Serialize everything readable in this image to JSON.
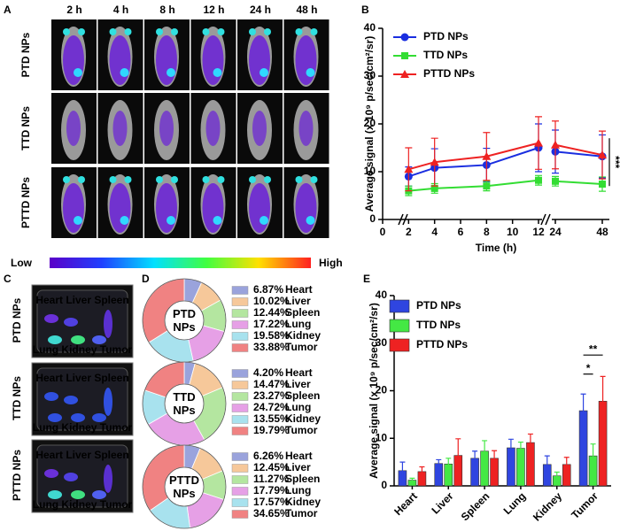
{
  "figure": {
    "panel_labels": [
      "A",
      "B",
      "C",
      "D",
      "E"
    ]
  },
  "imaging": {
    "time_points": [
      "2 h",
      "4 h",
      "8 h",
      "12 h",
      "24 h",
      "48 h"
    ],
    "groups": [
      "PTD NPs",
      "TTD NPs",
      "PTTD NPs"
    ],
    "scale_low": "Low",
    "scale_high": "High",
    "organ_groups": [
      "PTD NPs",
      "TTD NPs",
      "PTTD NPs"
    ],
    "organ_row_top": "Heart Liver Spleen",
    "organ_row_bottom": "Lung Kidney Tumor"
  },
  "chart_data": [
    {
      "type": "line",
      "x_label": "Time (h)",
      "y_label": "Average signal (x 10⁹ p/sec/cm²/sr)",
      "x": [
        2,
        4,
        8,
        12,
        24,
        48
      ],
      "xlim": [
        0,
        48
      ],
      "axis_break": [
        12,
        24
      ],
      "xticks": [
        0,
        2,
        4,
        6,
        8,
        10,
        12,
        24,
        48
      ],
      "ylim": [
        0,
        40
      ],
      "yticks": [
        0,
        10,
        20,
        30,
        40
      ],
      "annotation": "***",
      "series": [
        {
          "name": "PTD NPs",
          "color": "#1a2ee0",
          "marker": "circle",
          "values": [
            9,
            10.8,
            11.4,
            15,
            14.2,
            13.2
          ],
          "errors": [
            2,
            4,
            3.5,
            5,
            4.5,
            4.5
          ]
        },
        {
          "name": "TTD NPs",
          "color": "#33dd33",
          "marker": "square",
          "values": [
            6,
            6.5,
            7,
            8.2,
            8,
            7.4
          ],
          "errors": [
            1,
            1,
            1,
            1,
            1,
            1.5
          ]
        },
        {
          "name": "PTTD NPs",
          "color": "#ee2222",
          "marker": "triangle",
          "values": [
            10.5,
            12,
            13.2,
            16,
            15.6,
            13.5
          ],
          "errors": [
            4.5,
            5,
            5,
            5.5,
            5,
            5
          ]
        }
      ]
    },
    {
      "type": "pie",
      "center_label": "PTD NPs",
      "categories": [
        "Heart",
        "Liver",
        "Spleen",
        "Lung",
        "Kidney",
        "Tumor"
      ],
      "colors": [
        "#9aa3dc",
        "#f6c89a",
        "#b4e6a0",
        "#e6a0e6",
        "#a8e2ee",
        "#f08282"
      ],
      "values": [
        6.87,
        10.02,
        12.44,
        17.22,
        19.58,
        33.88
      ],
      "value_labels": [
        "6.87%",
        "10.02%",
        "12.44%",
        "17.22%",
        "19.58%",
        "33.88%"
      ]
    },
    {
      "type": "pie",
      "center_label": "TTD NPs",
      "categories": [
        "Heart",
        "Liver",
        "Spleen",
        "Lung",
        "Kidney",
        "Tumor"
      ],
      "colors": [
        "#9aa3dc",
        "#f6c89a",
        "#b4e6a0",
        "#e6a0e6",
        "#a8e2ee",
        "#f08282"
      ],
      "values": [
        4.2,
        14.47,
        23.27,
        24.72,
        13.55,
        19.79
      ],
      "value_labels": [
        "4.20%",
        "14.47%",
        "23.27%",
        "24.72%",
        "13.55%",
        "19.79%"
      ]
    },
    {
      "type": "pie",
      "center_label": "PTTD NPs",
      "categories": [
        "Heart",
        "Liver",
        "Spleen",
        "Lung",
        "Kidney",
        "Tumor"
      ],
      "colors": [
        "#9aa3dc",
        "#f6c89a",
        "#b4e6a0",
        "#e6a0e6",
        "#a8e2ee",
        "#f08282"
      ],
      "values": [
        6.26,
        12.45,
        11.27,
        17.79,
        17.57,
        34.65
      ],
      "value_labels": [
        "6.26%",
        "12.45%",
        "11.27%",
        "17.79%",
        "17.57%",
        "34.65%"
      ]
    },
    {
      "type": "bar",
      "y_label": "Average signal (x 10⁹ p/sec/cm²/sr)",
      "categories": [
        "Heart",
        "Liver",
        "Spleen",
        "Lung",
        "Kidney",
        "Tumor"
      ],
      "ylim": [
        0,
        40
      ],
      "yticks": [
        0,
        10,
        20,
        30,
        40
      ],
      "annotations": [
        "*",
        "**"
      ],
      "series": [
        {
          "name": "PTD NPs",
          "color": "#2f45e0",
          "values": [
            3.2,
            4.7,
            5.8,
            8,
            4.5,
            15.8
          ],
          "errors": [
            1.8,
            0.8,
            1.5,
            1.8,
            1.8,
            3.5
          ]
        },
        {
          "name": "TTD NPs",
          "color": "#44e844",
          "values": [
            1.2,
            4.6,
            7.3,
            7.9,
            2.1,
            6.3
          ],
          "errors": [
            0.4,
            1.2,
            2.2,
            1.3,
            0.8,
            2.5
          ]
        },
        {
          "name": "PTTD NPs",
          "color": "#ee2222",
          "values": [
            3,
            6.4,
            5.8,
            9.1,
            4.5,
            17.8
          ],
          "errors": [
            1,
            3.5,
            1.6,
            1.8,
            1.5,
            5.2
          ]
        }
      ]
    }
  ]
}
